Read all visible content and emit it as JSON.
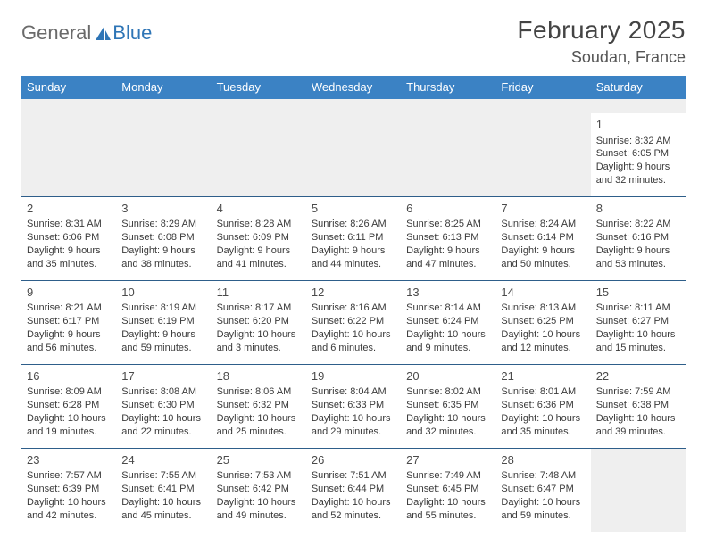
{
  "brand": {
    "general": "General",
    "blue": "Blue"
  },
  "header": {
    "month_title": "February 2025",
    "location": "Soudan, France"
  },
  "colors": {
    "header_bg": "#3b82c4",
    "header_text": "#ffffff",
    "divider": "#2e5e8a",
    "empty_bg": "#efefef",
    "text": "#3a3a3a"
  },
  "dow": [
    "Sunday",
    "Monday",
    "Tuesday",
    "Wednesday",
    "Thursday",
    "Friday",
    "Saturday"
  ],
  "weeks": [
    [
      null,
      null,
      null,
      null,
      null,
      null,
      {
        "n": "1",
        "sr": "Sunrise: 8:32 AM",
        "ss": "Sunset: 6:05 PM",
        "d1": "Daylight: 9 hours",
        "d2": "and 32 minutes."
      }
    ],
    [
      {
        "n": "2",
        "sr": "Sunrise: 8:31 AM",
        "ss": "Sunset: 6:06 PM",
        "d1": "Daylight: 9 hours",
        "d2": "and 35 minutes."
      },
      {
        "n": "3",
        "sr": "Sunrise: 8:29 AM",
        "ss": "Sunset: 6:08 PM",
        "d1": "Daylight: 9 hours",
        "d2": "and 38 minutes."
      },
      {
        "n": "4",
        "sr": "Sunrise: 8:28 AM",
        "ss": "Sunset: 6:09 PM",
        "d1": "Daylight: 9 hours",
        "d2": "and 41 minutes."
      },
      {
        "n": "5",
        "sr": "Sunrise: 8:26 AM",
        "ss": "Sunset: 6:11 PM",
        "d1": "Daylight: 9 hours",
        "d2": "and 44 minutes."
      },
      {
        "n": "6",
        "sr": "Sunrise: 8:25 AM",
        "ss": "Sunset: 6:13 PM",
        "d1": "Daylight: 9 hours",
        "d2": "and 47 minutes."
      },
      {
        "n": "7",
        "sr": "Sunrise: 8:24 AM",
        "ss": "Sunset: 6:14 PM",
        "d1": "Daylight: 9 hours",
        "d2": "and 50 minutes."
      },
      {
        "n": "8",
        "sr": "Sunrise: 8:22 AM",
        "ss": "Sunset: 6:16 PM",
        "d1": "Daylight: 9 hours",
        "d2": "and 53 minutes."
      }
    ],
    [
      {
        "n": "9",
        "sr": "Sunrise: 8:21 AM",
        "ss": "Sunset: 6:17 PM",
        "d1": "Daylight: 9 hours",
        "d2": "and 56 minutes."
      },
      {
        "n": "10",
        "sr": "Sunrise: 8:19 AM",
        "ss": "Sunset: 6:19 PM",
        "d1": "Daylight: 9 hours",
        "d2": "and 59 minutes."
      },
      {
        "n": "11",
        "sr": "Sunrise: 8:17 AM",
        "ss": "Sunset: 6:20 PM",
        "d1": "Daylight: 10 hours",
        "d2": "and 3 minutes."
      },
      {
        "n": "12",
        "sr": "Sunrise: 8:16 AM",
        "ss": "Sunset: 6:22 PM",
        "d1": "Daylight: 10 hours",
        "d2": "and 6 minutes."
      },
      {
        "n": "13",
        "sr": "Sunrise: 8:14 AM",
        "ss": "Sunset: 6:24 PM",
        "d1": "Daylight: 10 hours",
        "d2": "and 9 minutes."
      },
      {
        "n": "14",
        "sr": "Sunrise: 8:13 AM",
        "ss": "Sunset: 6:25 PM",
        "d1": "Daylight: 10 hours",
        "d2": "and 12 minutes."
      },
      {
        "n": "15",
        "sr": "Sunrise: 8:11 AM",
        "ss": "Sunset: 6:27 PM",
        "d1": "Daylight: 10 hours",
        "d2": "and 15 minutes."
      }
    ],
    [
      {
        "n": "16",
        "sr": "Sunrise: 8:09 AM",
        "ss": "Sunset: 6:28 PM",
        "d1": "Daylight: 10 hours",
        "d2": "and 19 minutes."
      },
      {
        "n": "17",
        "sr": "Sunrise: 8:08 AM",
        "ss": "Sunset: 6:30 PM",
        "d1": "Daylight: 10 hours",
        "d2": "and 22 minutes."
      },
      {
        "n": "18",
        "sr": "Sunrise: 8:06 AM",
        "ss": "Sunset: 6:32 PM",
        "d1": "Daylight: 10 hours",
        "d2": "and 25 minutes."
      },
      {
        "n": "19",
        "sr": "Sunrise: 8:04 AM",
        "ss": "Sunset: 6:33 PM",
        "d1": "Daylight: 10 hours",
        "d2": "and 29 minutes."
      },
      {
        "n": "20",
        "sr": "Sunrise: 8:02 AM",
        "ss": "Sunset: 6:35 PM",
        "d1": "Daylight: 10 hours",
        "d2": "and 32 minutes."
      },
      {
        "n": "21",
        "sr": "Sunrise: 8:01 AM",
        "ss": "Sunset: 6:36 PM",
        "d1": "Daylight: 10 hours",
        "d2": "and 35 minutes."
      },
      {
        "n": "22",
        "sr": "Sunrise: 7:59 AM",
        "ss": "Sunset: 6:38 PM",
        "d1": "Daylight: 10 hours",
        "d2": "and 39 minutes."
      }
    ],
    [
      {
        "n": "23",
        "sr": "Sunrise: 7:57 AM",
        "ss": "Sunset: 6:39 PM",
        "d1": "Daylight: 10 hours",
        "d2": "and 42 minutes."
      },
      {
        "n": "24",
        "sr": "Sunrise: 7:55 AM",
        "ss": "Sunset: 6:41 PM",
        "d1": "Daylight: 10 hours",
        "d2": "and 45 minutes."
      },
      {
        "n": "25",
        "sr": "Sunrise: 7:53 AM",
        "ss": "Sunset: 6:42 PM",
        "d1": "Daylight: 10 hours",
        "d2": "and 49 minutes."
      },
      {
        "n": "26",
        "sr": "Sunrise: 7:51 AM",
        "ss": "Sunset: 6:44 PM",
        "d1": "Daylight: 10 hours",
        "d2": "and 52 minutes."
      },
      {
        "n": "27",
        "sr": "Sunrise: 7:49 AM",
        "ss": "Sunset: 6:45 PM",
        "d1": "Daylight: 10 hours",
        "d2": "and 55 minutes."
      },
      {
        "n": "28",
        "sr": "Sunrise: 7:48 AM",
        "ss": "Sunset: 6:47 PM",
        "d1": "Daylight: 10 hours",
        "d2": "and 59 minutes."
      },
      null
    ]
  ]
}
